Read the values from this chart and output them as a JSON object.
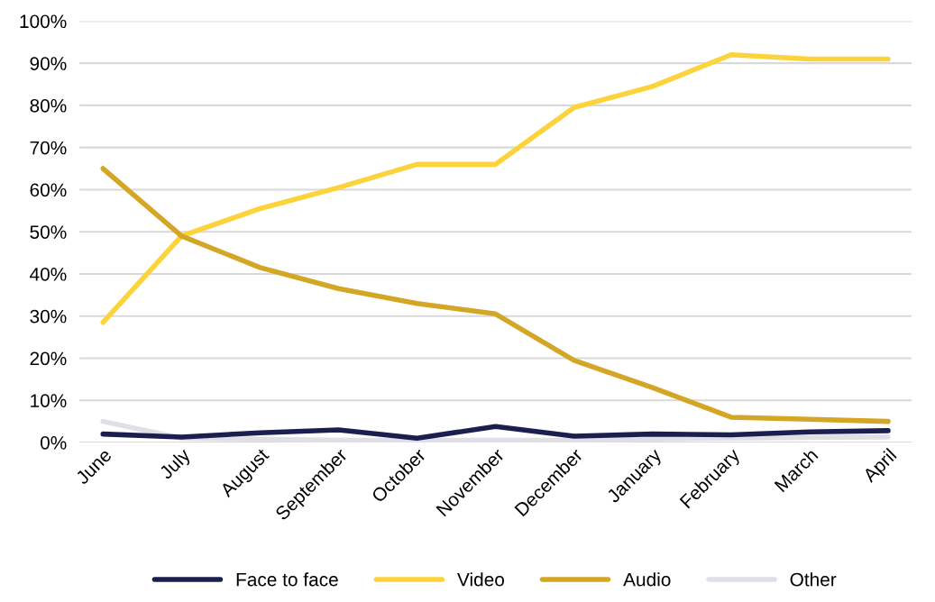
{
  "chart_data": {
    "type": "line",
    "categories": [
      "June",
      "July",
      "August",
      "September",
      "October",
      "November",
      "December",
      "January",
      "February",
      "March",
      "April"
    ],
    "series": [
      {
        "name": "Face to face",
        "color": "#1a1f4f",
        "values": [
          2.0,
          1.3,
          2.3,
          3.0,
          1.0,
          3.8,
          1.5,
          2.0,
          1.8,
          2.5,
          2.8
        ]
      },
      {
        "name": "Video",
        "color": "#fdd33b",
        "values": [
          28.5,
          49,
          55.5,
          60.5,
          66,
          66,
          79.5,
          84.5,
          92,
          91,
          91
        ]
      },
      {
        "name": "Audio",
        "color": "#d4a625",
        "values": [
          65,
          49,
          41.5,
          36.5,
          33,
          30.5,
          19.5,
          13,
          6,
          5.5,
          5
        ]
      },
      {
        "name": "Other",
        "color": "#e0dfe6",
        "values": [
          5,
          1,
          0.8,
          0.5,
          0.5,
          0.5,
          0.5,
          0.8,
          1,
          1.2,
          1.3
        ]
      }
    ],
    "ylim": [
      0,
      100
    ],
    "yticks": [
      {
        "value": 0,
        "label": "0%"
      },
      {
        "value": 10,
        "label": "10%"
      },
      {
        "value": 20,
        "label": "20%"
      },
      {
        "value": 30,
        "label": "30%"
      },
      {
        "value": 40,
        "label": "40%"
      },
      {
        "value": 50,
        "label": "50%"
      },
      {
        "value": 60,
        "label": "60%"
      },
      {
        "value": 70,
        "label": "70%"
      },
      {
        "value": 80,
        "label": "80%"
      },
      {
        "value": 90,
        "label": "90%"
      },
      {
        "value": 100,
        "label": "100%"
      }
    ],
    "grid": "y",
    "legend": "bottom",
    "marker": "none",
    "line_style": "solid"
  }
}
